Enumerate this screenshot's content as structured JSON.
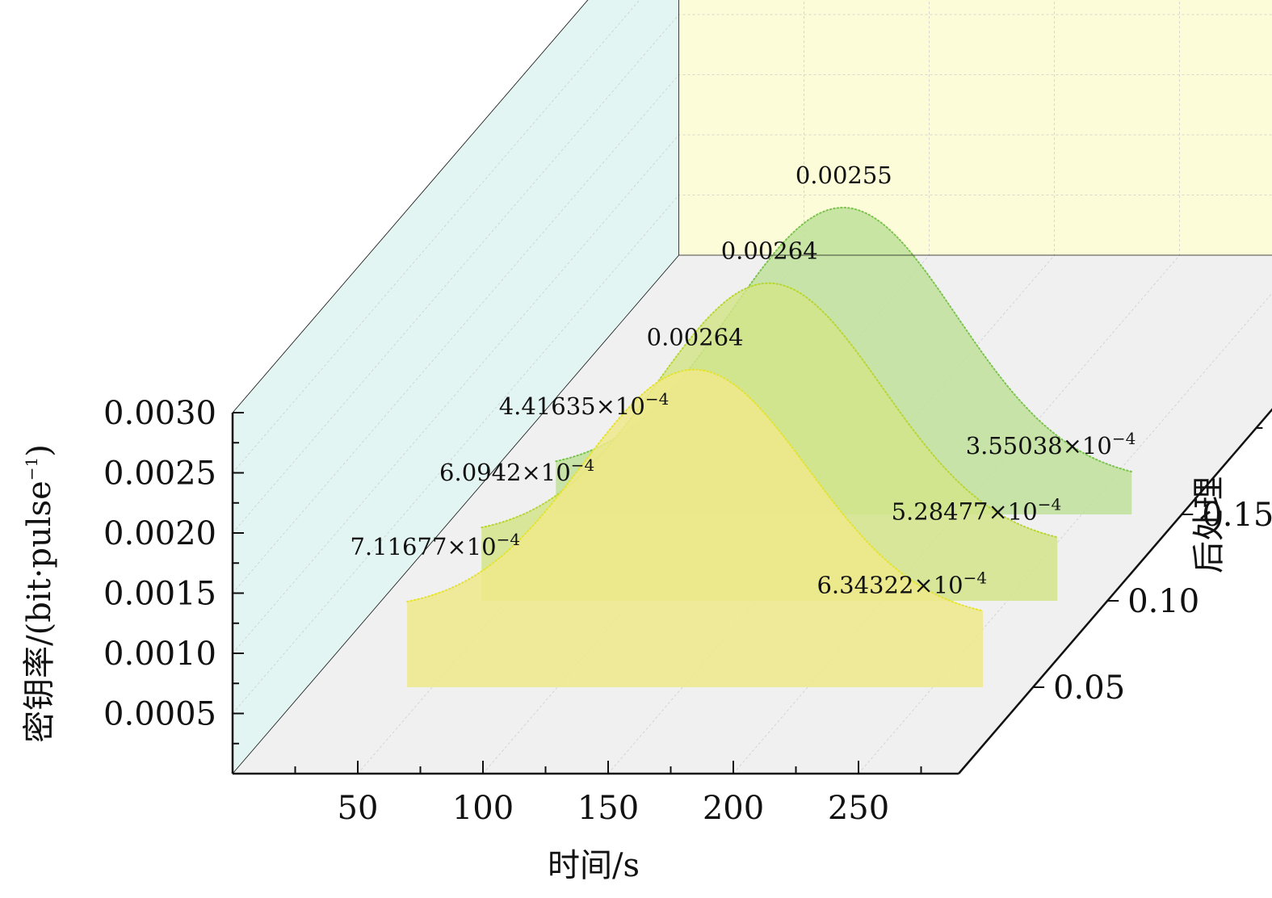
{
  "chart_data": {
    "type": "area",
    "title": "",
    "xlabel": "时间/s",
    "ylabel": "密钥率/(bit·pulse",
    "ylabel_sup": "−1",
    "ylabel_close": ")",
    "zlabel": "后处理",
    "xticks": [
      "50",
      "100",
      "150",
      "200",
      "250"
    ],
    "yticks": [
      "0.0005",
      "0.0010",
      "0.0015",
      "0.0020",
      "0.0025",
      "0.0030"
    ],
    "zticks": [
      "0.05",
      "0.10",
      "0.15"
    ],
    "xlim": [
      0,
      290
    ],
    "ylim": [
      0,
      0.003
    ],
    "grid": true,
    "series": [
      {
        "z": 0.05,
        "x_range": [
          40,
          270
        ],
        "peak_x": 155,
        "peak_value": 0.00264,
        "start_value": 0.000711677,
        "end_value": 0.000634322,
        "color": "#e6e32e",
        "fill": "#efe98a",
        "labels": {
          "peak": "0.00264",
          "start_mantissa": "7.11677",
          "end_mantissa": "6.34322",
          "times": "×10",
          "exp": "−4"
        }
      },
      {
        "z": 0.1,
        "x_range": [
          40,
          270
        ],
        "peak_x": 155,
        "peak_value": 0.00264,
        "start_value": 0.00060942,
        "end_value": 0.000528477,
        "color": "#b8d631",
        "fill": "#d2e48a",
        "labels": {
          "peak": "0.00264",
          "start_mantissa": "6.0942",
          "end_mantissa": "5.28477",
          "times": "×10",
          "exp": "−4"
        }
      },
      {
        "z": 0.15,
        "x_range": [
          40,
          270
        ],
        "peak_x": 155,
        "peak_value": 0.00255,
        "start_value": 0.000441635,
        "end_value": 0.000355038,
        "color": "#7cc44e",
        "fill": "#bfe09a",
        "labels": {
          "peak": "0.00255",
          "start_mantissa": "4.41635",
          "end_mantissa": "3.55038",
          "times": "×10",
          "exp": "−4"
        }
      }
    ],
    "colors": {
      "back_wall": "#fcfcd9",
      "side_wall": "#e3f5f2",
      "floor": "#f0f0f0",
      "axis": "#111111",
      "grid": "#cccccc"
    }
  }
}
